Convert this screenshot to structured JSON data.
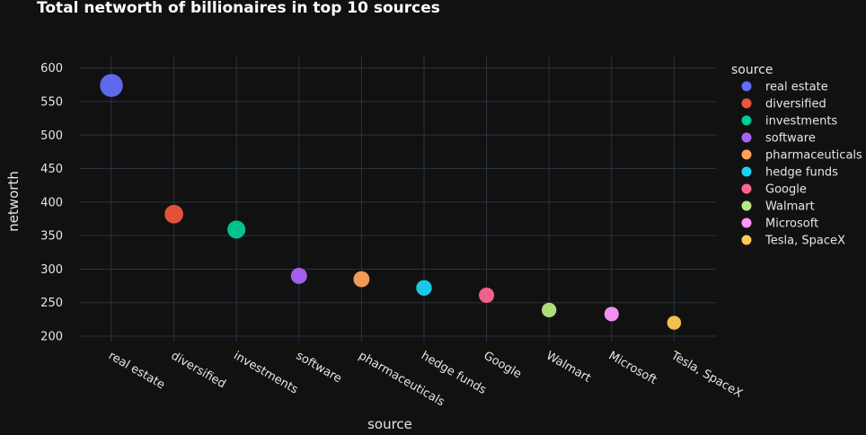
{
  "chart_data": {
    "type": "scatter",
    "title": "Total networth of billionaires in top 10 sources",
    "xlabel": "source",
    "ylabel": "networth",
    "ylim": [
      192,
      617
    ],
    "yticks": [
      200,
      250,
      300,
      350,
      400,
      450,
      500,
      550,
      600
    ],
    "categories": [
      "real estate",
      "diversified",
      "investments",
      "software",
      "pharmaceuticals",
      "hedge funds",
      "Google",
      "Walmart",
      "Microsoft",
      "Tesla, SpaceX"
    ],
    "values": [
      574,
      382,
      359,
      290,
      285,
      272,
      261,
      239,
      233,
      220
    ],
    "colors": [
      "#636efa",
      "#EF553B",
      "#00cc96",
      "#ab63fa",
      "#FFA15A",
      "#19d3f3",
      "#FF6692",
      "#B6E880",
      "#FF97FF",
      "#FECB52"
    ],
    "legend": {
      "title": "source",
      "placement": "right"
    },
    "grid": true
  }
}
